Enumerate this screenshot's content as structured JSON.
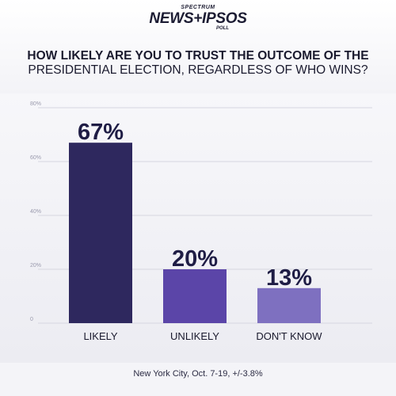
{
  "logo": {
    "top": "SPECTRUM",
    "main": "NEWS+IPSOS",
    "sub": "POLL"
  },
  "question": {
    "line1": "HOW LIKELY ARE YOU TO TRUST THE OUTCOME OF THE",
    "line2": "PRESIDENTIAL ELECTION, REGARDLESS OF WHO WINS?"
  },
  "footer": "New York City, Oct. 7-19, +/-3.8%",
  "chart_data": {
    "type": "bar",
    "title": "HOW LIKELY ARE YOU TO TRUST THE OUTCOME OF THE PRESIDENTIAL ELECTION, REGARDLESS OF WHO WINS?",
    "categories": [
      "LIKELY",
      "UNLIKELY",
      "DON'T KNOW"
    ],
    "values": [
      67,
      20,
      13
    ],
    "value_labels": [
      "67%",
      "20%",
      "13%"
    ],
    "colors": [
      "#2e285e",
      "#5b45a8",
      "#7e70c0"
    ],
    "ylim": [
      0,
      80
    ],
    "yticks": [
      0,
      20,
      40,
      60,
      80
    ],
    "ytick_labels": [
      "0",
      "20%",
      "40%",
      "60%",
      "80%"
    ],
    "grid": true,
    "legend": false
  }
}
